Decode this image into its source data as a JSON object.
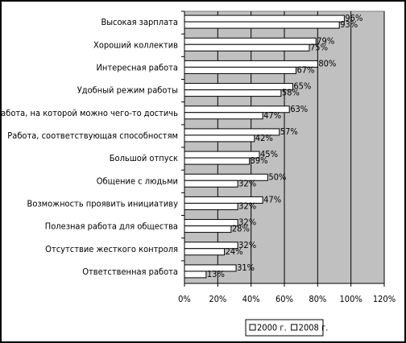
{
  "chart_data": {
    "type": "hbar",
    "categories": [
      "Высокая зарплата",
      "Хороший коллектив",
      "Интересная работа",
      "Удобный режим работы",
      "Работа, на которой можно чего-то достичь",
      "Работа, соответствующая способностям",
      "Большой отпуск",
      "Общение с людьми",
      "Возможность проявить инициативу",
      "Полезная работа для общества",
      "Отсутствие жесткого контроля",
      "Ответственная работа"
    ],
    "series": [
      {
        "name": "2000 г.",
        "color": "#ffffff",
        "values": [
          96,
          79,
          80,
          65,
          63,
          57,
          45,
          50,
          47,
          32,
          32,
          31
        ],
        "value_labels": [
          "96%",
          "79%",
          "80%",
          "65%",
          "63%",
          "57%",
          "45%",
          "50%",
          "47%",
          "32%",
          "32%",
          "31%"
        ]
      },
      {
        "name": "2008 г.",
        "color": "#ffffff",
        "values": [
          93,
          75,
          67,
          58,
          47,
          42,
          39,
          32,
          32,
          28,
          24,
          13
        ],
        "value_labels": [
          "93%",
          "75%",
          "67%",
          "58%",
          "47%",
          "42%",
          "39%",
          "32%",
          "32%",
          "28%",
          "24%",
          "13%"
        ]
      }
    ],
    "xlim": [
      0,
      120
    ],
    "xticks": [
      {
        "value": 0,
        "label": "0%"
      },
      {
        "value": 20,
        "label": "20%"
      },
      {
        "value": 40,
        "label": "40%"
      },
      {
        "value": 60,
        "label": "60%"
      },
      {
        "value": 80,
        "label": "80%"
      },
      {
        "value": 100,
        "label": "100%"
      },
      {
        "value": 120,
        "label": "120%"
      }
    ],
    "grid": true,
    "plot_background": "#c0c0c0",
    "legend": "bottom"
  }
}
